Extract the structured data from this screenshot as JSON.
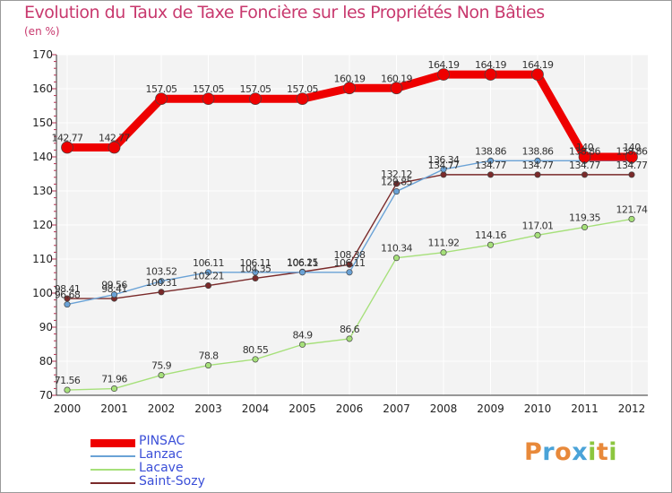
{
  "title": "Evolution du Taux de Taxe Foncière sur les Propriétés Non Bâties",
  "unit_label": "(en %)",
  "brand": {
    "letters": [
      "P",
      "r",
      "o",
      "x",
      "i",
      "t",
      "i"
    ],
    "colors": [
      "#e8893a",
      "#4aa3d8",
      "#e8893a",
      "#4aa3d8",
      "#8cc63f",
      "#e8893a",
      "#8cc63f"
    ]
  },
  "chart_data": {
    "type": "line",
    "title": "Evolution du Taux de Taxe Foncière sur les Propriétés Non Bâties",
    "ylabel": "(en %)",
    "x": [
      "2000",
      "2001",
      "2002",
      "2003",
      "2004",
      "2005",
      "2006",
      "2007",
      "2008",
      "2009",
      "2010",
      "2011",
      "2012"
    ],
    "ylim": [
      70,
      170
    ],
    "yticks": [
      70,
      80,
      90,
      100,
      110,
      120,
      130,
      140,
      150,
      160,
      170
    ],
    "grid": true,
    "legend_position": "bottom-left",
    "series": [
      {
        "name": "Saint-Sozy",
        "color": "#7a2a2a",
        "values": [
          98.41,
          98.41,
          100.31,
          102.21,
          104.35,
          106.25,
          108.38,
          132.12,
          134.77,
          134.77,
          134.77,
          134.77,
          134.77
        ],
        "labels": [
          "98.41",
          "98.41",
          "100.31",
          "102.21",
          "104.35",
          "106.25",
          "108.38",
          "132.12",
          "134.77",
          "134.77",
          "134.77",
          "134.77",
          "134.77"
        ]
      },
      {
        "name": "Lacave",
        "color": "#a6e07a",
        "values": [
          71.56,
          71.96,
          75.9,
          78.8,
          80.55,
          84.9,
          86.6,
          110.34,
          111.92,
          114.16,
          117.01,
          119.35,
          121.74
        ],
        "labels": [
          "71.56",
          "71.96",
          "75.9",
          "78.8",
          "80.55",
          "84.9",
          "86.6",
          "110.34",
          "111.92",
          "114.16",
          "117.01",
          "119.35",
          "121.74"
        ]
      },
      {
        "name": "Lanzac",
        "color": "#6aa2d6",
        "values": [
          96.68,
          99.56,
          103.52,
          106.11,
          106.11,
          106.11,
          106.11,
          129.85,
          136.34,
          138.86,
          138.86,
          138.86,
          138.86
        ],
        "labels": [
          "96.68",
          "99.56",
          "103.52",
          "106.11",
          "106.11",
          "106.11",
          "106.11",
          "129.85",
          "136.34",
          "138.86",
          "138.86",
          "138.86",
          "138.86"
        ]
      },
      {
        "name": "PINSAC",
        "color": "#ee0000",
        "values": [
          142.77,
          142.77,
          157.05,
          157.05,
          157.05,
          157.05,
          160.19,
          160.19,
          164.19,
          164.19,
          164.19,
          140,
          140
        ],
        "labels": [
          "142.77",
          "142.77",
          "157.05",
          "157.05",
          "157.05",
          "157.05",
          "160.19",
          "160.19",
          "164.19",
          "164.19",
          "164.19",
          "140",
          "140"
        ]
      }
    ],
    "legend": [
      "PINSAC",
      "Lanzac",
      "Lacave",
      "Saint-Sozy"
    ]
  }
}
